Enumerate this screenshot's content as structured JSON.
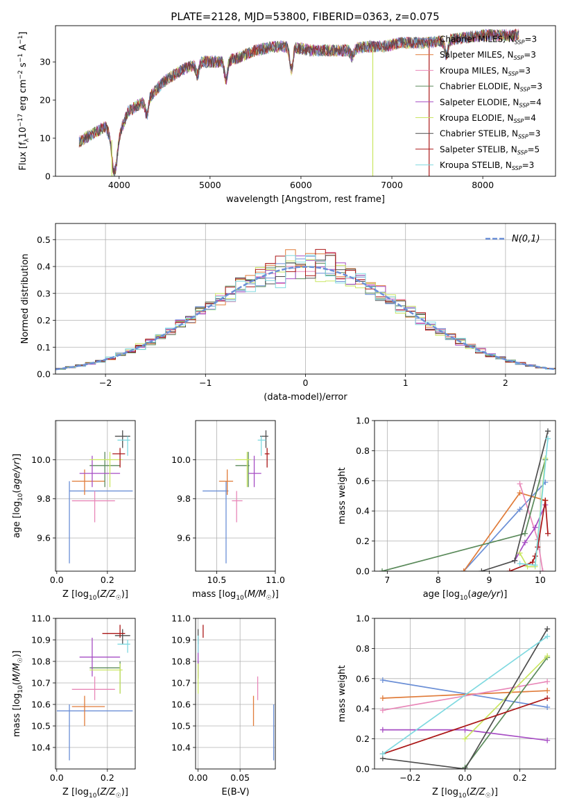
{
  "figure": {
    "title": "PLATE=2128, MJD=53800, FIBERID=0363, z=0.075"
  },
  "colors": {
    "models": [
      "#6b8fd6",
      "#e07b39",
      "#e887b8",
      "#5a8a5a",
      "#a64cc4",
      "#c9e660",
      "#4d4d4d",
      "#aa1616",
      "#7fd9e0"
    ]
  },
  "models": [
    "Chabrier MILES, N_SSP=3",
    "Salpeter MILES, N_SSP=3",
    "Kroupa MILES, N_SSP=3",
    "Chabrier ELODIE, N_SSP=3",
    "Salpeter ELODIE, N_SSP=4",
    "Kroupa ELODIE, N_SSP=4",
    "Chabrier STELIB, N_SSP=3",
    "Salpeter STELIB, N_SSP=5",
    "Kroupa STELIB, N_SSP=3"
  ],
  "chart_data": [
    {
      "type": "line",
      "id": "spectrum",
      "xlabel": "wavelength [Angstrom, rest frame]",
      "ylabel": "Flux [f_λ 10^-17 erg cm^-2 s^-1 A^-1]",
      "xlim": [
        3300,
        8800
      ],
      "ylim": [
        0,
        39.5
      ],
      "xticks": [
        4000,
        5000,
        6000,
        7000,
        8000
      ],
      "yticks": [
        0,
        10,
        20,
        30
      ],
      "legend": "top-right",
      "continuum_x": [
        3550,
        3700,
        3850,
        3950,
        4100,
        4300,
        4500,
        4700,
        4900,
        5100,
        5300,
        5500,
        5700,
        5900,
        6100,
        6300,
        6500,
        6700,
        6900,
        7100,
        7400,
        7700,
        8000,
        8300,
        8700
      ],
      "continuum_y": [
        9,
        11,
        13,
        8,
        17,
        20,
        25,
        28,
        30,
        30,
        31,
        33,
        34,
        34,
        33,
        33,
        33,
        34,
        34,
        35,
        35,
        36,
        37,
        37,
        37
      ]
    },
    {
      "type": "line",
      "id": "residuals",
      "xlabel": "(data-model)/error",
      "ylabel": "Normed distribution",
      "xlim": [
        -2.5,
        2.5
      ],
      "ylim": [
        0,
        0.56
      ],
      "xticks": [
        -2,
        -1,
        0,
        1,
        2
      ],
      "yticks": [
        0.0,
        0.1,
        0.2,
        0.3,
        0.4,
        0.5
      ],
      "grid": true,
      "legend": "top-right",
      "legend_label": "N(0,1)",
      "bin_width": 0.1,
      "gaussian": {
        "mu": 0,
        "sigma": 1
      }
    },
    {
      "type": "scatter",
      "id": "age-vs-Z",
      "xlabel": "Z [log10(Z/Z☉)]",
      "ylabel": "age [log10(age/yr)]",
      "xlim": [
        -0.005,
        0.31
      ],
      "ylim": [
        9.43,
        10.2
      ],
      "xticks": [
        0.0,
        0.2
      ],
      "yticks": [
        9.6,
        9.8,
        10.0
      ],
      "grid": true,
      "points": [
        {
          "x": 0.05,
          "y": 9.84,
          "xerr": [
            0.05,
            0.3
          ],
          "yerr": [
            9.47,
            9.89
          ]
        },
        {
          "x": 0.11,
          "y": 9.89,
          "xerr": [
            0.06,
            0.19
          ],
          "yerr": [
            9.82,
            9.95
          ]
        },
        {
          "x": 0.15,
          "y": 9.79,
          "xerr": [
            0.06,
            0.23
          ],
          "yerr": [
            9.68,
            9.84
          ]
        },
        {
          "x": 0.19,
          "y": 9.97,
          "xerr": [
            0.13,
            0.25
          ],
          "yerr": [
            9.86,
            10.04
          ]
        },
        {
          "x": 0.14,
          "y": 9.93,
          "xerr": [
            0.09,
            0.25
          ],
          "yerr": [
            9.86,
            10.02
          ]
        },
        {
          "x": 0.21,
          "y": 10.0,
          "xerr": [
            0.13,
            0.26
          ],
          "yerr": [
            9.86,
            10.04
          ]
        },
        {
          "x": 0.26,
          "y": 10.12,
          "xerr": [
            0.23,
            0.29
          ],
          "yerr": [
            10.06,
            10.15
          ]
        },
        {
          "x": 0.25,
          "y": 10.03,
          "xerr": [
            0.22,
            0.27
          ],
          "yerr": [
            9.96,
            10.06
          ]
        },
        {
          "x": 0.28,
          "y": 10.1,
          "xerr": [
            0.24,
            0.29
          ],
          "yerr": [
            10.02,
            10.12
          ]
        }
      ]
    },
    {
      "type": "scatter",
      "id": "age-vs-mass",
      "xlabel": "mass [log10(M/M☉)]",
      "ylabel": "",
      "xlim": [
        10.32,
        11.0
      ],
      "ylim": [
        9.43,
        10.2
      ],
      "xticks": [
        10.5,
        11.0
      ],
      "yticks": [
        9.6,
        9.8,
        10.0
      ],
      "grid": true,
      "points": [
        {
          "x": 10.58,
          "y": 9.84,
          "xerr": [
            10.38,
            10.6
          ],
          "yerr": [
            9.47,
            9.89
          ]
        },
        {
          "x": 10.59,
          "y": 9.89,
          "xerr": [
            10.52,
            10.64
          ],
          "yerr": [
            9.82,
            9.95
          ]
        },
        {
          "x": 10.67,
          "y": 9.79,
          "xerr": [
            10.63,
            10.72
          ],
          "yerr": [
            9.68,
            9.84
          ]
        },
        {
          "x": 10.77,
          "y": 9.97,
          "xerr": [
            10.66,
            10.78
          ],
          "yerr": [
            9.86,
            10.04
          ]
        },
        {
          "x": 10.82,
          "y": 9.93,
          "xerr": [
            10.77,
            10.88
          ],
          "yerr": [
            9.86,
            10.02
          ]
        },
        {
          "x": 10.76,
          "y": 10.0,
          "xerr": [
            10.66,
            10.79
          ],
          "yerr": [
            9.86,
            10.04
          ]
        },
        {
          "x": 10.92,
          "y": 10.12,
          "xerr": [
            10.87,
            10.94
          ],
          "yerr": [
            10.06,
            10.15
          ]
        },
        {
          "x": 10.93,
          "y": 10.03,
          "xerr": [
            10.91,
            10.95
          ],
          "yerr": [
            9.96,
            10.06
          ]
        },
        {
          "x": 10.88,
          "y": 10.1,
          "xerr": [
            10.85,
            10.92
          ],
          "yerr": [
            10.02,
            10.12
          ]
        }
      ]
    },
    {
      "type": "line",
      "id": "massweight-vs-age",
      "xlabel": "age [log10(age/yr)]",
      "ylabel": "mass weight",
      "xlim": [
        6.75,
        10.3
      ],
      "ylim": [
        0.0,
        1.0
      ],
      "xticks": [
        7,
        8,
        9,
        10
      ],
      "yticks": [
        0.0,
        0.2,
        0.4,
        0.6,
        0.8,
        1.0
      ],
      "grid": true,
      "series": [
        {
          "x": [
            8.5,
            9.6,
            10.1
          ],
          "y": [
            0.0,
            0.41,
            0.59
          ]
        },
        {
          "x": [
            8.5,
            9.6,
            10.1
          ],
          "y": [
            0.0,
            0.52,
            0.47
          ]
        },
        {
          "x": [
            9.6,
            9.95,
            10.05
          ],
          "y": [
            0.58,
            0.21,
            0.0
          ]
        },
        {
          "x": [
            6.9,
            9.7,
            10.1
          ],
          "y": [
            0.0,
            0.25,
            0.74
          ]
        },
        {
          "x": [
            9.5,
            9.7,
            9.9,
            10.1
          ],
          "y": [
            0.07,
            0.19,
            0.29,
            0.44
          ]
        },
        {
          "x": [
            9.6,
            9.75,
            9.9,
            10.1
          ],
          "y": [
            0.12,
            0.03,
            0.03,
            0.75
          ]
        },
        {
          "x": [
            8.85,
            9.5,
            10.15
          ],
          "y": [
            0.0,
            0.07,
            0.93
          ]
        },
        {
          "x": [
            9.4,
            9.85,
            9.9,
            9.95,
            10.1,
            10.15
          ],
          "y": [
            0.0,
            0.06,
            0.1,
            0.16,
            0.47,
            0.25
          ]
        },
        {
          "x": [
            9.6,
            9.9,
            10.15
          ],
          "y": [
            0.05,
            0.04,
            0.88
          ]
        }
      ]
    },
    {
      "type": "scatter",
      "id": "mass-vs-Z",
      "xlabel": "Z [log10(Z/Z☉)]",
      "ylabel": "mass [log10(M/M☉)]",
      "xlim": [
        -0.005,
        0.31
      ],
      "ylim": [
        10.3,
        11.0
      ],
      "xticks": [
        0.0,
        0.2
      ],
      "yticks": [
        10.4,
        10.5,
        10.6,
        10.7,
        10.8,
        10.9,
        11.0
      ],
      "grid": true,
      "points": [
        {
          "x": 0.05,
          "y": 10.57,
          "xerr": [
            0.0,
            0.3
          ],
          "yerr": [
            10.34,
            10.6
          ]
        },
        {
          "x": 0.11,
          "y": 10.59,
          "xerr": [
            0.06,
            0.19
          ],
          "yerr": [
            10.5,
            10.64
          ]
        },
        {
          "x": 0.15,
          "y": 10.67,
          "xerr": [
            0.06,
            0.23
          ],
          "yerr": [
            10.62,
            10.73
          ]
        },
        {
          "x": 0.25,
          "y": 10.77,
          "xerr": [
            0.13,
            0.25
          ],
          "yerr": [
            10.65,
            10.8
          ]
        },
        {
          "x": 0.14,
          "y": 10.82,
          "xerr": [
            0.09,
            0.25
          ],
          "yerr": [
            10.73,
            10.91
          ]
        },
        {
          "x": 0.25,
          "y": 10.76,
          "xerr": [
            0.13,
            0.26
          ],
          "yerr": [
            10.65,
            10.79
          ]
        },
        {
          "x": 0.26,
          "y": 10.92,
          "xerr": [
            0.23,
            0.29
          ],
          "yerr": [
            10.88,
            10.95
          ]
        },
        {
          "x": 0.25,
          "y": 10.93,
          "xerr": [
            0.18,
            0.27
          ],
          "yerr": [
            10.91,
            10.97
          ]
        },
        {
          "x": 0.28,
          "y": 10.88,
          "xerr": [
            0.24,
            0.29
          ],
          "yerr": [
            10.84,
            10.9
          ]
        }
      ]
    },
    {
      "type": "scatter",
      "id": "mass-vs-EBV",
      "xlabel": "E(B-V)",
      "ylabel": "",
      "xlim": [
        -0.003,
        0.092
      ],
      "ylim": [
        10.3,
        11.0
      ],
      "xticks": [
        0.0,
        0.05
      ],
      "xticklabels": [
        "0.00",
        "0.05"
      ],
      "yticks": [
        10.4,
        10.5,
        10.6,
        10.7,
        10.8,
        10.9,
        11.0
      ],
      "grid": true,
      "points": [
        {
          "x": 0.09,
          "y": 10.57,
          "yerr": [
            10.34,
            10.6
          ]
        },
        {
          "x": 0.066,
          "y": 10.59,
          "yerr": [
            10.5,
            10.64
          ]
        },
        {
          "x": 0.071,
          "y": 10.67,
          "yerr": [
            10.62,
            10.73
          ]
        },
        {
          "x": 0.0,
          "y": 10.77,
          "yerr": [
            10.72,
            10.8
          ]
        },
        {
          "x": 0.0,
          "y": 10.82,
          "yerr": [
            10.73,
            10.91
          ]
        },
        {
          "x": 0.0,
          "y": 10.76,
          "yerr": [
            10.65,
            10.79
          ]
        },
        {
          "x": 0.0,
          "y": 10.92,
          "yerr": [
            10.88,
            10.95
          ]
        },
        {
          "x": 0.006,
          "y": 10.93,
          "yerr": [
            10.91,
            10.97
          ]
        },
        {
          "x": 0.0,
          "y": 10.88,
          "yerr": [
            10.84,
            10.92
          ]
        }
      ]
    },
    {
      "type": "line",
      "id": "massweight-vs-Z",
      "xlabel": "Z [log10(Z/Z☉)]",
      "ylabel": "mass weight",
      "xlim": [
        -0.33,
        0.33
      ],
      "ylim": [
        0.0,
        1.0
      ],
      "xticks": [
        -0.2,
        0.0,
        0.2
      ],
      "yticks": [
        0.0,
        0.2,
        0.4,
        0.6,
        0.8,
        1.0
      ],
      "grid": true,
      "series": [
        {
          "x": [
            -0.3,
            0.3
          ],
          "y": [
            0.59,
            0.41
          ]
        },
        {
          "x": [
            -0.3,
            0.3
          ],
          "y": [
            0.47,
            0.52
          ]
        },
        {
          "x": [
            -0.3,
            0.3
          ],
          "y": [
            0.39,
            0.58
          ]
        },
        {
          "x": [
            0.0,
            0.3
          ],
          "y": [
            0.01,
            0.74
          ]
        },
        {
          "x": [
            -0.3,
            0.0,
            0.3
          ],
          "y": [
            0.26,
            0.26,
            0.19
          ]
        },
        {
          "x": [
            0.0,
            0.3
          ],
          "y": [
            0.2,
            0.75
          ]
        },
        {
          "x": [
            -0.3,
            0.0,
            0.3
          ],
          "y": [
            0.07,
            0.0,
            0.93
          ]
        },
        {
          "x": [
            -0.3,
            0.3
          ],
          "y": [
            0.1,
            0.47
          ]
        },
        {
          "x": [
            -0.3,
            0.3
          ],
          "y": [
            0.1,
            0.88
          ]
        }
      ]
    }
  ]
}
